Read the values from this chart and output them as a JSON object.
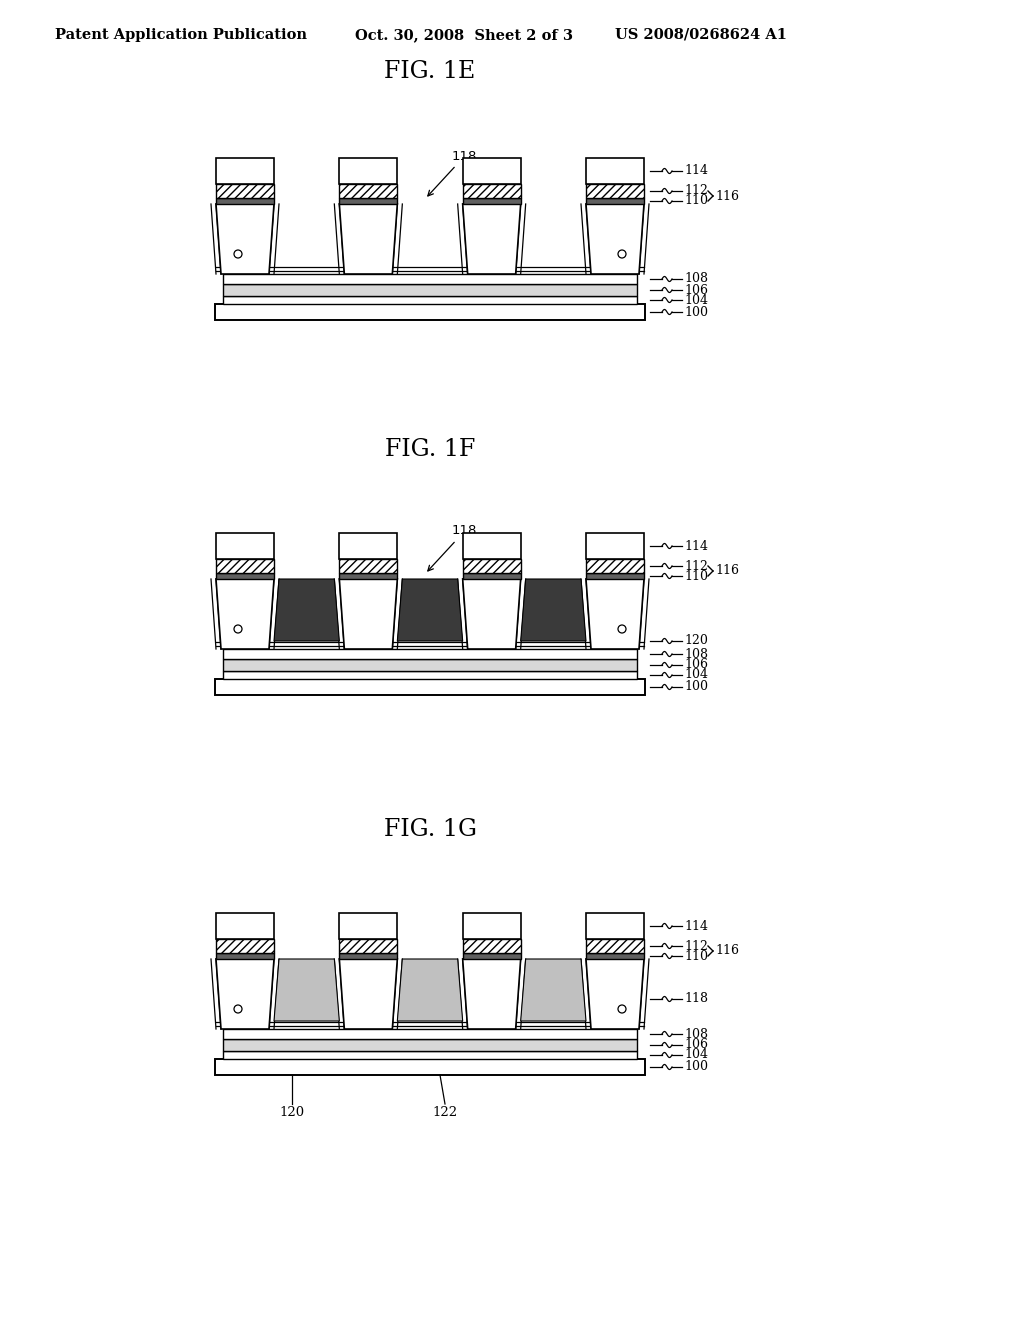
{
  "bg_color": "#ffffff",
  "header_left": "Patent Application Publication",
  "header_mid": "Oct. 30, 2008  Sheet 2 of 3",
  "header_right": "US 2008/0268624 A1",
  "fig_labels": [
    "FIG. 1E",
    "FIG. 1F",
    "FIG. 1G"
  ],
  "fig_types": [
    "E",
    "F",
    "G"
  ],
  "layer_labels_E": [
    "114",
    "112",
    "110",
    "108",
    "106",
    "104",
    "100"
  ],
  "layer_labels_F": [
    "114",
    "112",
    "110",
    "108",
    "120",
    "106",
    "104",
    "100"
  ],
  "layer_labels_G": [
    "114",
    "112",
    "110",
    "108",
    "118",
    "106",
    "104",
    "100"
  ],
  "bracket_label": "116"
}
